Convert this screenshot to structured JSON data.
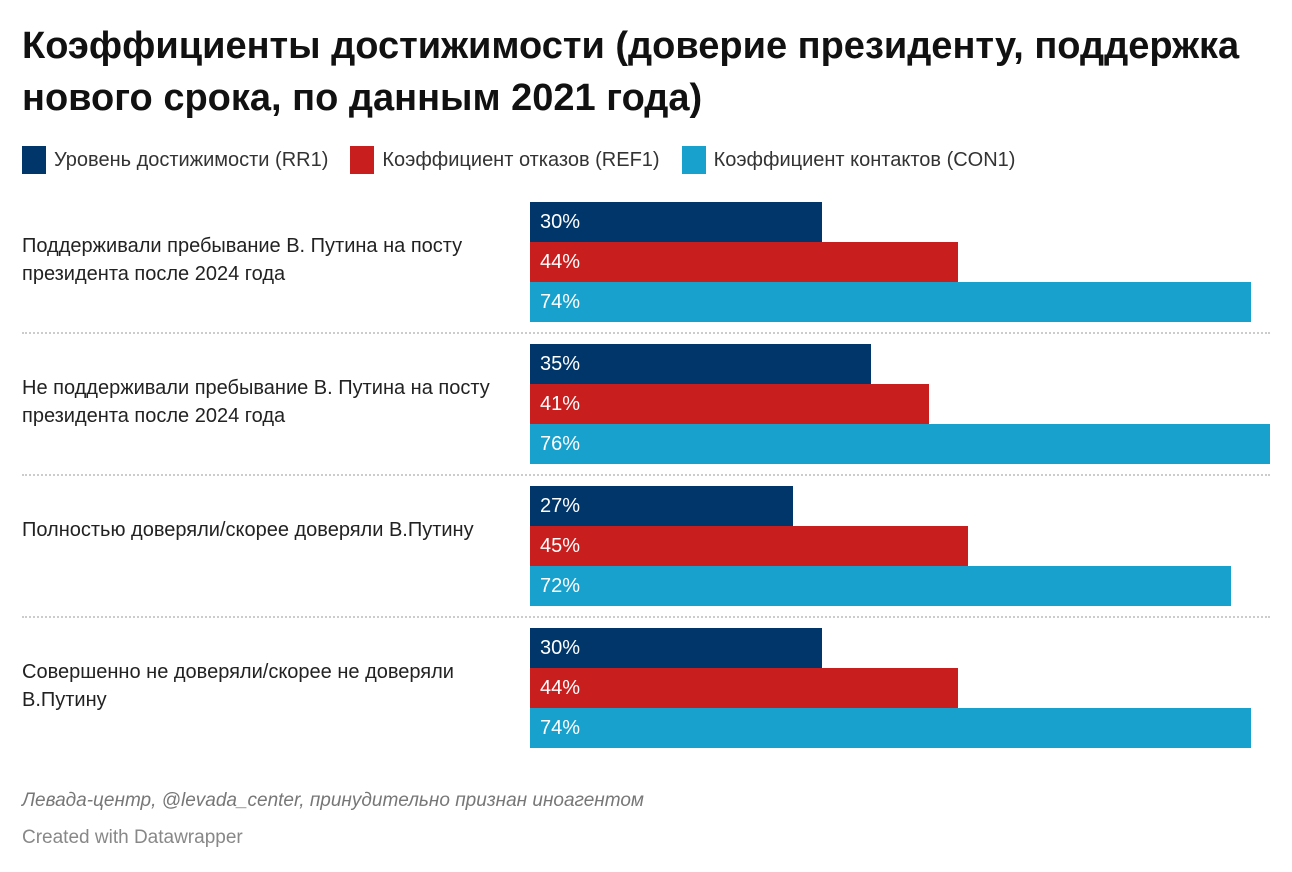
{
  "chart_data": {
    "type": "bar",
    "orientation": "horizontal",
    "grouped": true,
    "title": "Коэффициенты достижимости (доверие президенту, поддержка нового срока, по данным 2021 года)",
    "categories": [
      "Поддерживали пребывание В. Путина на посту президента после 2024 года",
      "Не поддерживали пребывание В. Путина на посту президента после 2024 года",
      "Полностью доверяли/скорее доверяли В.Путину",
      "Совершенно не доверяли/скорее не доверяли В.Путину"
    ],
    "series": [
      {
        "name": "Уровень достижимости (RR1)",
        "color": "#01366b",
        "values": [
          30,
          35,
          27,
          30
        ],
        "labels": [
          "30%",
          "35%",
          "27%",
          "30%"
        ]
      },
      {
        "name": "Коэффициент отказов (REF1)",
        "color": "#c81e1e",
        "values": [
          44,
          41,
          45,
          44
        ],
        "labels": [
          "44%",
          "41%",
          "45%",
          "44%"
        ]
      },
      {
        "name": "Коэффициент контактов (CON1)",
        "color": "#18a1cd",
        "values": [
          74,
          76,
          72,
          74
        ],
        "labels": [
          "74%",
          "76%",
          "72%",
          "74%"
        ]
      }
    ],
    "xlim": [
      0,
      76
    ],
    "legend": "top",
    "grid": false
  },
  "source": "Левада-центр, @levada_center, принудительно признан иноагентом",
  "credit": "Created with Datawrapper"
}
